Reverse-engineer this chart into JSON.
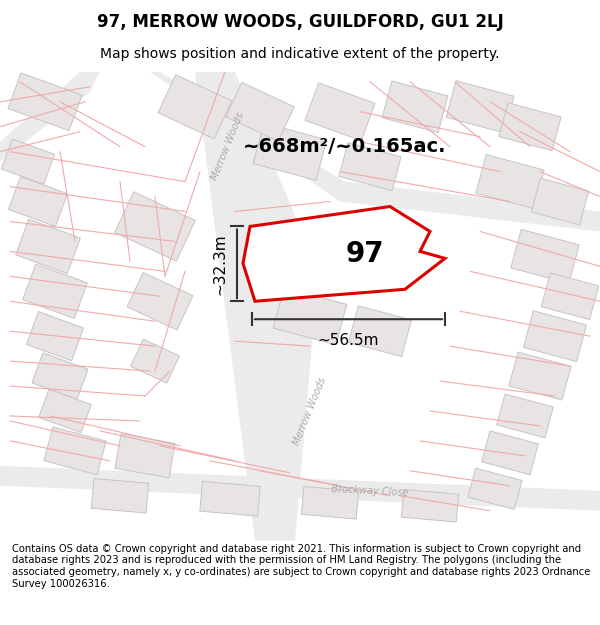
{
  "title": "97, MERROW WOODS, GUILDFORD, GU1 2LJ",
  "subtitle": "Map shows position and indicative extent of the property.",
  "footer": "Contains OS data © Crown copyright and database right 2021. This information is subject to Crown copyright and database rights 2023 and is reproduced with the permission of HM Land Registry. The polygons (including the associated geometry, namely x, y co-ordinates) are subject to Crown copyright and database rights 2023 Ordnance Survey 100026316.",
  "area_label": "~668m²/~0.165ac.",
  "plot_number": "97",
  "width_label": "~56.5m",
  "height_label": "~32.3m",
  "map_bg": "#f7f5f5",
  "plot_outline_color": "#dd0000",
  "pink_line_color": "#f0aaaa",
  "building_color": "#e8e4e4",
  "building_edge": "#c8c4c4",
  "road_fill": "#ebebeb",
  "title_fontsize": 12,
  "subtitle_fontsize": 10,
  "footer_fontsize": 7.2,
  "road_label_color": "#aaaaaa",
  "dim_line_color": "#333333",
  "label_fontsize": 14
}
